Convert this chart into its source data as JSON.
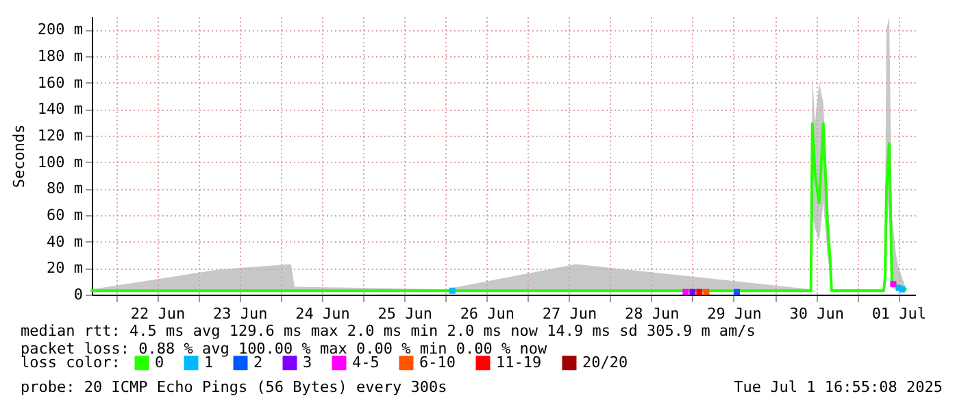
{
  "chart_data": {
    "type": "line",
    "ylabel": "Seconds",
    "xlim": [
      "2025-06-21T16:55",
      "2025-07-01T16:55"
    ],
    "xticks": [
      {
        "value": "2025-06-22T00:00",
        "label": null
      },
      {
        "value": "2025-06-22T12:00",
        "label": "22 Jun"
      },
      {
        "value": "2025-06-23T00:00",
        "label": null
      },
      {
        "value": "2025-06-23T12:00",
        "label": "23 Jun"
      },
      {
        "value": "2025-06-24T00:00",
        "label": null
      },
      {
        "value": "2025-06-24T12:00",
        "label": "24 Jun"
      },
      {
        "value": "2025-06-25T00:00",
        "label": null
      },
      {
        "value": "2025-06-25T12:00",
        "label": "25 Jun"
      },
      {
        "value": "2025-06-26T00:00",
        "label": null
      },
      {
        "value": "2025-06-26T12:00",
        "label": "26 Jun"
      },
      {
        "value": "2025-06-27T00:00",
        "label": null
      },
      {
        "value": "2025-06-27T12:00",
        "label": "27 Jun"
      },
      {
        "value": "2025-06-28T00:00",
        "label": null
      },
      {
        "value": "2025-06-28T12:00",
        "label": "28 Jun"
      },
      {
        "value": "2025-06-29T00:00",
        "label": null
      },
      {
        "value": "2025-06-29T12:00",
        "label": "29 Jun"
      },
      {
        "value": "2025-06-30T00:00",
        "label": null
      },
      {
        "value": "2025-06-30T12:00",
        "label": "30 Jun"
      },
      {
        "value": "2025-07-01T00:00",
        "label": null
      },
      {
        "value": "2025-07-01T12:00",
        "label": "01 Jul"
      }
    ],
    "ylim": [
      0,
      210
    ],
    "yticks": [
      0,
      {
        "value": 20,
        "label": "20 m"
      },
      {
        "value": 40,
        "label": "40 m"
      },
      {
        "value": 60,
        "label": "60 m"
      },
      {
        "value": 80,
        "label": "80 m"
      },
      {
        "value": 100,
        "label": "100 m"
      },
      {
        "value": 120,
        "label": "120 m"
      },
      {
        "value": 140,
        "label": "140 m"
      },
      {
        "value": 160,
        "label": "160 m"
      },
      {
        "value": 180,
        "label": "180 m"
      },
      {
        "value": 200,
        "label": "200 m"
      }
    ],
    "grid": true,
    "legend": "bottom",
    "legend_title": "loss color:",
    "series": [
      {
        "name": "0",
        "color": "#26ff00",
        "x": [
          "2025-06-21T16:55",
          "2025-06-23T06:00",
          "2025-06-24T03:00",
          "2025-06-24T04:00",
          "2025-06-26T00:00",
          "2025-06-27T14:00",
          "2025-06-30T10:31",
          "2025-06-30T10:55",
          "2025-06-30T11:43",
          "2025-06-30T12:55",
          "2025-06-30T14:07",
          "2025-06-30T15:19",
          "2025-06-30T16:07",
          "2025-06-30T16:31",
          "2025-07-01T07:43",
          "2025-07-01T08:07",
          "2025-07-01T08:31",
          "2025-07-01T09:19",
          "2025-07-01T10:07",
          "2025-07-01T11:19",
          "2025-07-01T12:07",
          "2025-07-01T14:07"
        ],
        "values": [
          3,
          3,
          3,
          3,
          3,
          3,
          3,
          129,
          91,
          69,
          129,
          54,
          26,
          3,
          3,
          13,
          78,
          114,
          8,
          8,
          5,
          4
        ],
        "lower": [
          2,
          2,
          2,
          2,
          2,
          2,
          2,
          60,
          50,
          40,
          70,
          30,
          15,
          2,
          2,
          5,
          50,
          70,
          5,
          4,
          3,
          3
        ],
        "upper": [
          4,
          19,
          23,
          6,
          4,
          23,
          4,
          165,
          130,
          160,
          145,
          80,
          40,
          4,
          4,
          50,
          200,
          210,
          60,
          30,
          20,
          5
        ]
      },
      {
        "name": "1",
        "type": "scatter",
        "color": "#00b8ff",
        "x": [
          "2025-06-26T02:00",
          "2025-07-01T12:07",
          "2025-07-01T13:07"
        ],
        "values": [
          3,
          5,
          4
        ]
      },
      {
        "name": "2",
        "type": "scatter",
        "color": "#0059ff",
        "x": [
          "2025-06-29T12:55"
        ],
        "values": [
          2
        ]
      },
      {
        "name": "3",
        "type": "scatter",
        "color": "#7e00ff",
        "x": [
          "2025-06-29T00:00"
        ],
        "values": [
          2
        ]
      },
      {
        "name": "4-5",
        "type": "scatter",
        "color": "#ff00ff",
        "x": [
          "2025-06-28T22:00",
          "2025-07-01T10:30"
        ],
        "values": [
          2,
          8
        ]
      },
      {
        "name": "6-10",
        "type": "scatter",
        "color": "#ff5500",
        "x": [
          "2025-06-29T04:00"
        ],
        "values": [
          2
        ]
      },
      {
        "name": "11-19",
        "type": "scatter",
        "color": "#ff0000",
        "x": [
          "2025-06-29T02:00"
        ],
        "values": [
          2
        ]
      },
      {
        "name": "20/20",
        "type": "scatter",
        "color": "#a10000"
      }
    ],
    "annotations": [
      "median rtt:  4.5 ms avg  129.6 ms max  2.0 ms min  2.0 ms now  14.9 ms sd  305.9 m am/s",
      "packet loss: 0.88 % avg  100.00 % max  0.00 % min  0.00 % now",
      "probe:       20 ICMP Echo Pings (56 Bytes) every 300s",
      "Tue Jul  1 16:55:08 2025"
    ]
  }
}
